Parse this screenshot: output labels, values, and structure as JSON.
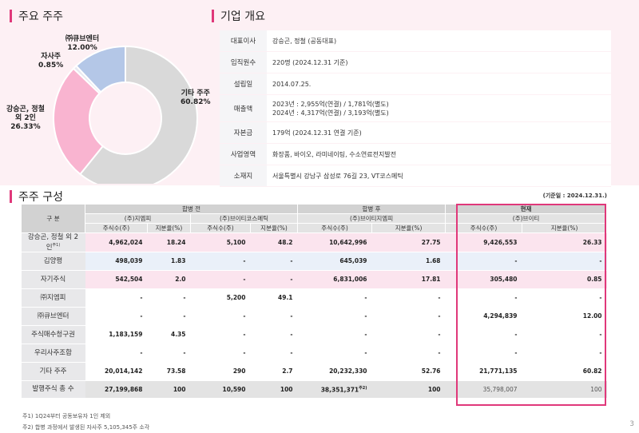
{
  "sections": {
    "major_holders": "주요 주주",
    "company": "기업 개요",
    "structure": "주주 구성"
  },
  "chart_data": {
    "type": "pie",
    "style": "donut",
    "start": "top",
    "direction": "clockwise",
    "slices": [
      {
        "label": "기타 주주",
        "value": 60.82,
        "display": "60.82%",
        "color": "#d9d9d9"
      },
      {
        "label": "강승곤, 정철 외 2인",
        "value": 26.33,
        "display": "26.33%",
        "color": "#f9b4d0"
      },
      {
        "label": "자사주",
        "value": 0.85,
        "display": "0.85%",
        "color": "#e8e8f0"
      },
      {
        "label": "㈜큐브엔터",
        "value": 12.0,
        "display": "12.00%",
        "color": "#b4c7e7"
      }
    ]
  },
  "company": {
    "rows": [
      {
        "key": "대표이사",
        "lines": [
          "강승곤, 정철 (공동대표)"
        ]
      },
      {
        "key": "임직원수",
        "lines": [
          "220명 (2024.12.31 기준)"
        ]
      },
      {
        "key": "설립일",
        "lines": [
          "2014.07.25."
        ]
      },
      {
        "key": "매출액",
        "lines": [
          "2023년 : 2,955억(연결) / 1,781억(별도)",
          "2024년 : 4,317억(연결) / 3,193억(별도)"
        ]
      },
      {
        "key": "자본금",
        "lines": [
          "179억 (2024.12.31 연결 기준)"
        ]
      },
      {
        "key": "사업영역",
        "lines": [
          "화장품, 바이오, 라미네이팅, 수소연료전지발전"
        ]
      },
      {
        "key": "소재지",
        "lines": [
          "서울특별시 강남구 삼성로 76길 23, VT코스메틱"
        ]
      }
    ]
  },
  "table": {
    "basis": "(기준일 : 2024.12.31.)",
    "header": {
      "gubun": "구 분",
      "before": "합병 전",
      "after": "합병 후",
      "now": "현재",
      "co_a": "(주)지엠피",
      "co_b": "(주)브이티코스메틱",
      "co_c": "(주)브이티지엠피",
      "co_d": "(주)브이티",
      "shares": "주식수(주)",
      "ratio": "지분율(%)"
    },
    "rows": [
      {
        "name": "강승곤, 정철 외 2인",
        "note": "주1)",
        "style": "pink",
        "v": [
          "4,962,024",
          "18.24",
          "5,100",
          "48.2",
          "10,642,996",
          "27.75",
          "9,426,553",
          "26.33"
        ]
      },
      {
        "name": "김양평",
        "note": "",
        "style": "blue",
        "v": [
          "498,039",
          "1.83",
          "-",
          "-",
          "645,039",
          "1.68",
          "-",
          "-"
        ]
      },
      {
        "name": "자기주식",
        "note": "",
        "style": "pink",
        "v": [
          "542,504",
          "2.0",
          "-",
          "-",
          "6,831,006",
          "17.81",
          "305,480",
          "0.85"
        ]
      },
      {
        "name": "㈜지엠피",
        "note": "",
        "style": "",
        "v": [
          "-",
          "-",
          "5,200",
          "49.1",
          "-",
          "-",
          "-",
          "-"
        ]
      },
      {
        "name": "㈜큐브엔터",
        "note": "",
        "style": "",
        "v": [
          "-",
          "-",
          "-",
          "-",
          "-",
          "-",
          "4,294,839",
          "12.00"
        ]
      },
      {
        "name": "주식매수청구권",
        "note": "",
        "style": "",
        "v": [
          "1,183,159",
          "4.35",
          "-",
          "-",
          "-",
          "-",
          "-",
          "-"
        ]
      },
      {
        "name": "우리사주조합",
        "note": "",
        "style": "",
        "v": [
          "-",
          "-",
          "-",
          "-",
          "-",
          "-",
          "-",
          "-"
        ]
      },
      {
        "name": "기타 주주",
        "note": "",
        "style": "",
        "v": [
          "20,014,142",
          "73.58",
          "290",
          "2.7",
          "20,232,330",
          "52.76",
          "21,771,135",
          "60.82"
        ]
      }
    ],
    "total": {
      "name": "발행주식 총 수",
      "v": [
        "27,199,868",
        "100",
        "10,590",
        "100",
        "38,351,371",
        "100",
        "35,798,007",
        "100"
      ],
      "note": "주2)"
    }
  },
  "footnotes": [
    "주1) 1Q24부터 공동보유자 1인 제외",
    "주2) 합병 과정에서 발생된 자사주 5,105,345주 소각"
  ],
  "page_number": "3"
}
